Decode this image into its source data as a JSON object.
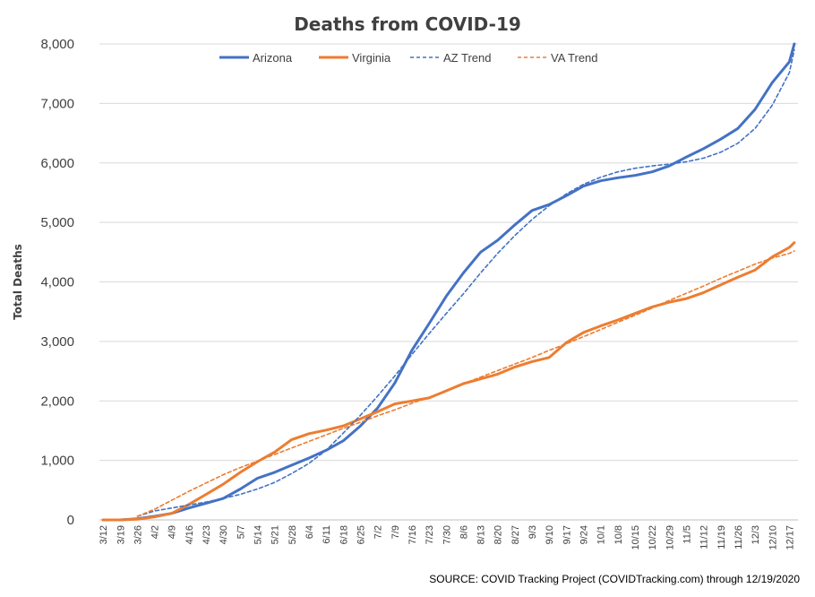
{
  "chart_data": {
    "type": "line",
    "title": "Deaths from COVID-19",
    "ylabel": "Total Deaths",
    "xlabel": "",
    "source": "SOURCE: COVID Tracking Project (COVIDTracking.com) through 12/19/2020",
    "ylim": [
      0,
      8000
    ],
    "yticks": [
      "0",
      "1,000",
      "2,000",
      "3,000",
      "4,000",
      "5,000",
      "6,000",
      "7,000",
      "8,000"
    ],
    "ytick_values": [
      0,
      1000,
      2000,
      3000,
      4000,
      5000,
      6000,
      7000,
      8000
    ],
    "xticks": [
      "3/12",
      "3/19",
      "3/26",
      "4/2",
      "4/9",
      "4/16",
      "4/23",
      "4/30",
      "5/7",
      "5/14",
      "5/21",
      "5/28",
      "6/4",
      "6/11",
      "6/18",
      "6/25",
      "7/2",
      "7/9",
      "7/16",
      "7/23",
      "7/30",
      "8/6",
      "8/13",
      "8/20",
      "8/27",
      "9/3",
      "9/10",
      "9/17",
      "9/24",
      "10/1",
      "10/8",
      "10/15",
      "10/22",
      "10/29",
      "11/5",
      "11/12",
      "11/19",
      "11/26",
      "12/3",
      "12/10",
      "12/17"
    ],
    "x_start": "3/12/2020",
    "x_end": "12/19/2020",
    "grid": true,
    "legend_position": "top",
    "series": [
      {
        "name": "Arizona",
        "color": "#4472C4",
        "style": "solid",
        "x": [
          "3/12",
          "3/19",
          "3/26",
          "4/2",
          "4/9",
          "4/16",
          "4/23",
          "4/30",
          "5/7",
          "5/14",
          "5/21",
          "5/28",
          "6/4",
          "6/11",
          "6/18",
          "6/25",
          "7/2",
          "7/9",
          "7/16",
          "7/23",
          "7/30",
          "8/6",
          "8/13",
          "8/20",
          "8/27",
          "9/3",
          "9/10",
          "9/17",
          "9/24",
          "10/1",
          "10/8",
          "10/15",
          "10/22",
          "10/29",
          "11/5",
          "11/12",
          "11/19",
          "11/26",
          "12/3",
          "12/10",
          "12/17",
          "12/19"
        ],
        "values": [
          0,
          0,
          20,
          60,
          110,
          200,
          280,
          360,
          520,
          700,
          800,
          920,
          1040,
          1170,
          1330,
          1580,
          1880,
          2300,
          2850,
          3300,
          3760,
          4150,
          4500,
          4700,
          4960,
          5200,
          5300,
          5450,
          5610,
          5700,
          5750,
          5790,
          5850,
          5950,
          6100,
          6240,
          6400,
          6580,
          6900,
          7350,
          7700,
          8000
        ]
      },
      {
        "name": "Virginia",
        "color": "#ED7D31",
        "style": "solid",
        "x": [
          "3/12",
          "3/19",
          "3/26",
          "4/2",
          "4/9",
          "4/16",
          "4/23",
          "4/30",
          "5/7",
          "5/14",
          "5/21",
          "5/28",
          "6/4",
          "6/11",
          "6/18",
          "6/25",
          "7/2",
          "7/9",
          "7/16",
          "7/23",
          "7/30",
          "8/6",
          "8/13",
          "8/20",
          "8/27",
          "9/3",
          "9/10",
          "9/17",
          "9/24",
          "10/1",
          "10/8",
          "10/15",
          "10/22",
          "10/29",
          "11/5",
          "11/12",
          "11/19",
          "11/26",
          "12/3",
          "12/10",
          "12/17",
          "12/19"
        ],
        "values": [
          0,
          0,
          10,
          50,
          110,
          260,
          430,
          600,
          800,
          980,
          1140,
          1350,
          1450,
          1510,
          1580,
          1700,
          1820,
          1950,
          2000,
          2050,
          2170,
          2290,
          2370,
          2450,
          2570,
          2660,
          2730,
          2980,
          3150,
          3260,
          3360,
          3470,
          3580,
          3660,
          3720,
          3820,
          3950,
          4080,
          4200,
          4420,
          4580,
          4660
        ]
      },
      {
        "name": "AZ Trend",
        "color": "#4472C4",
        "style": "dashed",
        "x": [
          "3/26",
          "4/2",
          "4/9",
          "4/16",
          "4/23",
          "4/30",
          "5/7",
          "5/14",
          "5/21",
          "5/28",
          "6/4",
          "6/11",
          "6/18",
          "6/25",
          "7/2",
          "7/9",
          "7/16",
          "7/23",
          "7/30",
          "8/6",
          "8/13",
          "8/20",
          "8/27",
          "9/3",
          "9/10",
          "9/17",
          "9/24",
          "10/1",
          "10/8",
          "10/15",
          "10/22",
          "10/29",
          "11/5",
          "11/12",
          "11/19",
          "11/26",
          "12/3",
          "12/10",
          "12/17",
          "12/19"
        ],
        "values": [
          60,
          150,
          200,
          250,
          300,
          360,
          430,
          520,
          630,
          780,
          950,
          1170,
          1460,
          1760,
          2080,
          2420,
          2780,
          3130,
          3470,
          3800,
          4150,
          4480,
          4780,
          5050,
          5280,
          5480,
          5640,
          5760,
          5850,
          5910,
          5950,
          5980,
          6020,
          6080,
          6180,
          6330,
          6580,
          6970,
          7520,
          7900
        ]
      },
      {
        "name": "VA Trend",
        "color": "#ED7D31",
        "style": "dashed",
        "x": [
          "3/26",
          "4/2",
          "4/9",
          "4/16",
          "4/23",
          "4/30",
          "5/7",
          "5/14",
          "5/21",
          "5/28",
          "6/4",
          "6/11",
          "6/18",
          "6/25",
          "7/2",
          "7/9",
          "7/16",
          "7/23",
          "7/30",
          "8/6",
          "8/13",
          "8/20",
          "8/27",
          "9/3",
          "9/10",
          "9/17",
          "9/24",
          "10/1",
          "10/8",
          "10/15",
          "10/22",
          "10/29",
          "11/5",
          "11/12",
          "11/19",
          "11/26",
          "12/3",
          "12/10",
          "12/17",
          "12/19"
        ],
        "values": [
          60,
          180,
          330,
          480,
          620,
          760,
          880,
          990,
          1100,
          1210,
          1320,
          1430,
          1540,
          1640,
          1750,
          1850,
          1960,
          2060,
          2170,
          2290,
          2400,
          2510,
          2620,
          2730,
          2850,
          2960,
          3080,
          3200,
          3320,
          3440,
          3560,
          3690,
          3810,
          3930,
          4060,
          4180,
          4300,
          4400,
          4480,
          4520
        ]
      }
    ]
  }
}
